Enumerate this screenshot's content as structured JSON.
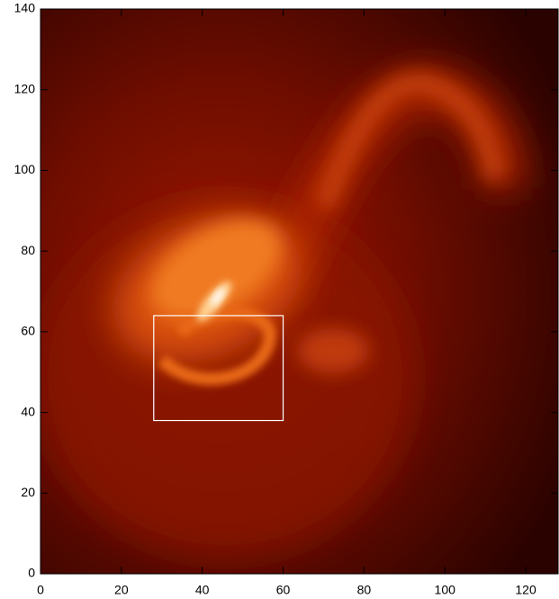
{
  "chart_data": {
    "type": "heatmap",
    "xlim": [
      0,
      128
    ],
    "ylim": [
      0,
      140
    ],
    "xticks": [
      0,
      20,
      40,
      60,
      80,
      100,
      120
    ],
    "yticks": [
      0,
      20,
      40,
      60,
      80,
      100,
      120,
      140
    ],
    "box": {
      "x": [
        28,
        60
      ],
      "y": [
        38,
        64
      ],
      "color": "#ffffff"
    }
  }
}
